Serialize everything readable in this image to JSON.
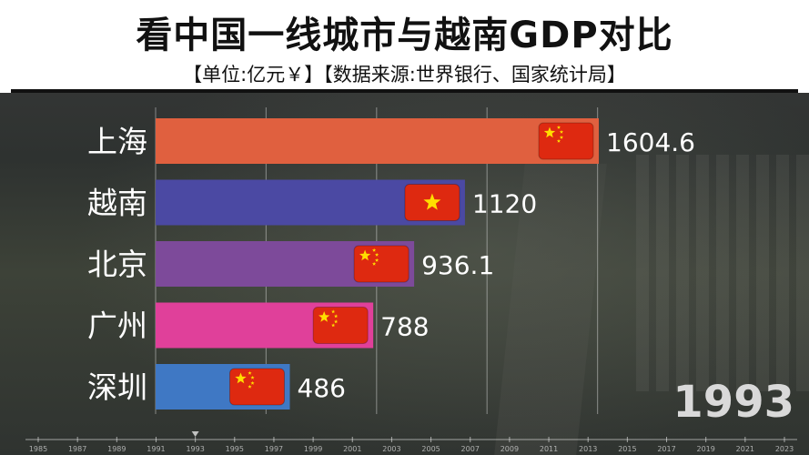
{
  "title": "看中国一线城市与越南GDP对比",
  "subtitle": "【单位:亿元￥】【数据来源:世界银行、国家统计局】",
  "year": "1993",
  "chart_data": {
    "type": "bar",
    "orientation": "horizontal",
    "title": "看中国一线城市与越南GDP对比",
    "categories": [
      "上海",
      "越南",
      "北京",
      "广州",
      "深圳"
    ],
    "values": [
      1604.6,
      1120,
      936.1,
      788,
      486
    ],
    "value_labels": [
      "1604.6",
      "1120",
      "936.1",
      "788",
      "486"
    ],
    "colors": [
      "#e0603f",
      "#4b49a3",
      "#7d4a9a",
      "#e0409a",
      "#3f78c4"
    ],
    "flags": [
      "china-flag-icon",
      "vietnam-flag-icon",
      "china-flag-icon",
      "china-flag-icon",
      "china-flag-icon"
    ],
    "xlim": [
      0,
      1604.6
    ],
    "grid": true,
    "timeline_ticks": [
      "1985",
      "1987",
      "1989",
      "1991",
      "1993",
      "1995",
      "1997",
      "1999",
      "2001",
      "2003",
      "2005",
      "2007",
      "2009",
      "2011",
      "2013",
      "2015",
      "2017",
      "2019",
      "2021",
      "2023"
    ],
    "current_year": "1993"
  }
}
